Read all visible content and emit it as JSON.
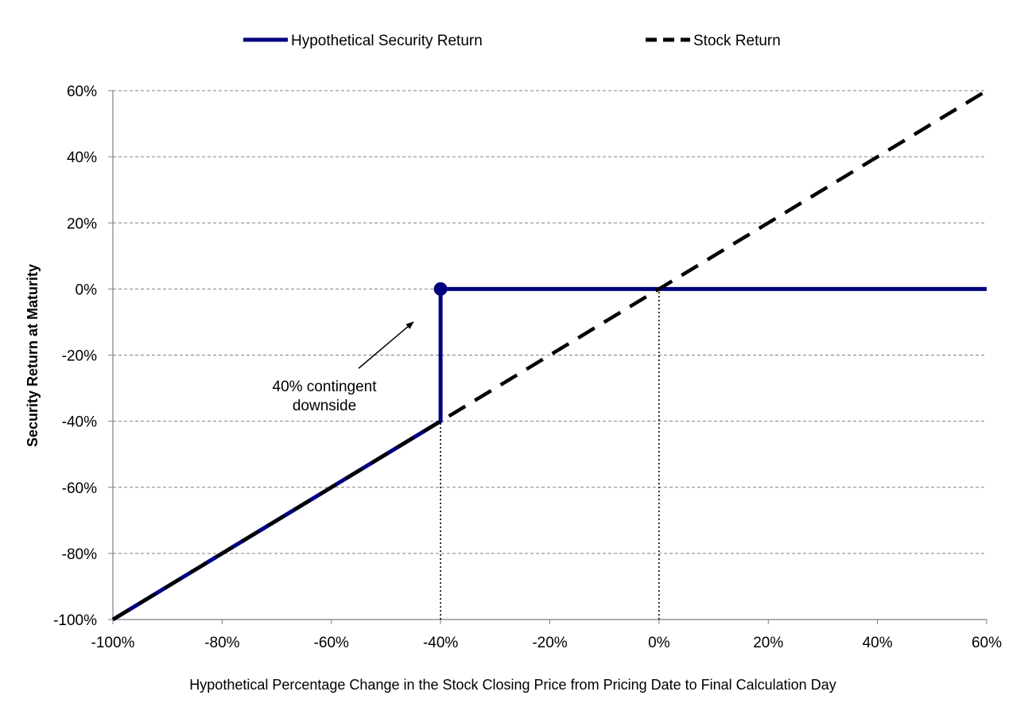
{
  "chart_data": {
    "type": "line",
    "xlabel": "Hypothetical Percentage Change in the Stock Closing Price from Pricing Date to Final Calculation Day",
    "ylabel": "Security Return at Maturity",
    "xlim": [
      -100,
      60
    ],
    "ylim": [
      -100,
      60
    ],
    "x_ticks": [
      -100,
      -80,
      -60,
      -40,
      -20,
      0,
      20,
      40,
      60
    ],
    "y_ticks": [
      -100,
      -80,
      -60,
      -40,
      -20,
      0,
      20,
      40,
      60
    ],
    "x_tick_labels": [
      "-100%",
      "-80%",
      "-60%",
      "-40%",
      "-20%",
      "0%",
      "20%",
      "40%",
      "60%"
    ],
    "y_tick_labels": [
      "-100%",
      "-80%",
      "-60%",
      "-40%",
      "-20%",
      "0%",
      "20%",
      "40%",
      "60%"
    ],
    "grid": "horizontal dashed",
    "legend": "top",
    "series": [
      {
        "name": "Hypothetical Security Return",
        "style": "solid",
        "color": "#000080",
        "points": [
          [
            -100,
            -100
          ],
          [
            -40,
            -40
          ],
          [
            -40,
            0
          ],
          [
            60,
            0
          ]
        ]
      },
      {
        "name": "Stock Return",
        "style": "dashed",
        "color": "#000000",
        "points": [
          [
            -100,
            -100
          ],
          [
            60,
            60
          ]
        ]
      }
    ],
    "marker": {
      "x": -40,
      "y": 0,
      "color": "#000080"
    },
    "reference_lines": [
      {
        "x": -40,
        "y_from": -100,
        "y_to": -40,
        "style": "dotted"
      },
      {
        "x": 0,
        "y_from": -100,
        "y_to": 0,
        "style": "dotted"
      }
    ],
    "annotation": {
      "lines": [
        "40% contingent",
        "downside"
      ],
      "arrow_to": {
        "x": -45,
        "y": -10
      },
      "arrow_from": {
        "x": -55,
        "y": -24
      }
    }
  }
}
